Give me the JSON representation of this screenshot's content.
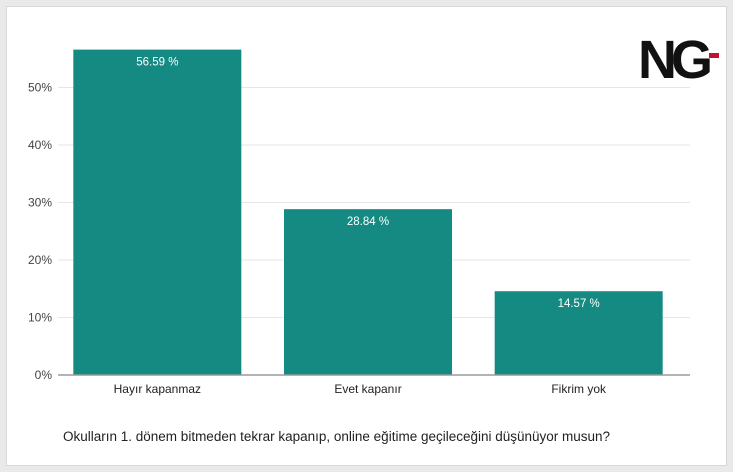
{
  "logo": {
    "text": "NG"
  },
  "colors": {
    "bar": "#148A83",
    "grid": "#e6e6e6",
    "axis": "#9a9a9a",
    "logo_dark": "#111111",
    "logo_accent": "#c8102e"
  },
  "chart_data": {
    "type": "bar",
    "categories": [
      "Hayır kapanmaz",
      "Evet kapanır",
      "Fikrim yok"
    ],
    "values": [
      56.59,
      28.84,
      14.57
    ],
    "data_labels": [
      "56.59 %",
      "28.84 %",
      "14.57 %"
    ],
    "yticks": [
      0,
      10,
      20,
      30,
      40,
      50
    ],
    "ytick_labels": [
      "0%",
      "10%",
      "20%",
      "30%",
      "40%",
      "50%"
    ],
    "ylim": [
      0,
      60
    ],
    "grid": true,
    "title": "",
    "xlabel": "",
    "ylabel": "",
    "caption": "Okulların 1. dönem bitmeden tekrar kapanıp, online eğitime geçileceğini düşünüyor musun?"
  }
}
